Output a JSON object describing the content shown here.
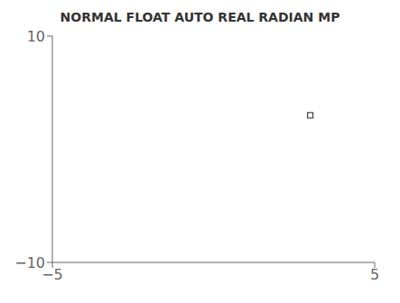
{
  "chart_data": {
    "type": "scatter",
    "title": "NORMAL FLOAT AUTO REAL RADIAN MP",
    "x": [
      3
    ],
    "values": [
      3
    ],
    "color": "#444444",
    "marker": "square",
    "xlim": [
      -5,
      5
    ],
    "ylim": [
      -10,
      10
    ],
    "xticks": [
      {
        "value": -5,
        "label": "−5"
      },
      {
        "value": 5,
        "label": "5"
      }
    ],
    "yticks": [
      {
        "value": -10,
        "label": "−10"
      },
      {
        "value": 10,
        "label": "10"
      }
    ],
    "grid": false
  }
}
